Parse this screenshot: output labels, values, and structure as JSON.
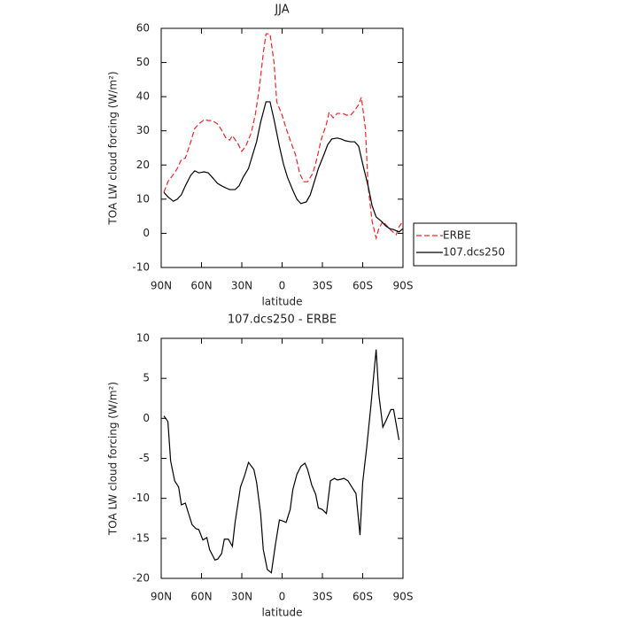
{
  "chart_data": [
    {
      "type": "line",
      "title": "JJA",
      "xlabel": "latitude",
      "ylabel": "TOA LW cloud forcing (W/m²)",
      "xlim": [
        90,
        -90
      ],
      "xticks": [
        {
          "value": 90,
          "label": "90N"
        },
        {
          "value": 60,
          "label": "60N"
        },
        {
          "value": 30,
          "label": "30N"
        },
        0,
        {
          "value": -30,
          "label": "30S"
        },
        {
          "value": -60,
          "label": "60S"
        },
        {
          "value": -90,
          "label": "90S"
        }
      ],
      "ylim": [
        -10,
        60
      ],
      "yticks": [
        -10,
        0,
        10,
        20,
        30,
        40,
        50,
        60
      ],
      "legend": "right",
      "series": [
        {
          "name": "ERBE",
          "color": "#e8262b",
          "linestyle": "dashed",
          "x": [
            88,
            85,
            81,
            78,
            75,
            72,
            68,
            65,
            62,
            58,
            55,
            52,
            48,
            45,
            42,
            39,
            37,
            33,
            30,
            27,
            23,
            20,
            17,
            14,
            12,
            9,
            6,
            4,
            0,
            -3,
            -6,
            -10,
            -13,
            -16,
            -19,
            -23,
            -26,
            -29,
            -33,
            -35,
            -38,
            -41,
            -45,
            -48,
            -51,
            -54,
            -57,
            -59,
            -62,
            -64,
            -67,
            -70,
            -72,
            -75,
            -78,
            -81,
            -85,
            -87,
            -90
          ],
          "values": [
            12,
            15.1,
            17.2,
            19,
            21.6,
            22,
            26.8,
            30.7,
            32,
            33.3,
            33,
            33,
            32,
            30.2,
            28,
            27.3,
            28.6,
            26.3,
            24,
            25.5,
            29.4,
            34.6,
            42.4,
            52.7,
            58.4,
            58.4,
            50,
            38.5,
            34.6,
            30.7,
            27.3,
            23,
            17.7,
            15.1,
            15.1,
            17.7,
            22,
            27.3,
            32,
            35.4,
            33.8,
            35.1,
            35.1,
            34.6,
            34.6,
            35.9,
            37.7,
            39.8,
            30.7,
            13.9,
            3.5,
            -1.4,
            1.4,
            3.5,
            2.2,
            0.9,
            -0.4,
            1.9,
            3.5
          ]
        },
        {
          "name": "107.dcs250",
          "color": "#000000",
          "linestyle": "solid",
          "x": [
            88,
            85,
            81,
            78,
            75,
            72,
            68,
            65,
            62,
            58,
            55,
            52,
            48,
            45,
            42,
            39,
            35,
            32,
            29,
            25,
            22,
            19,
            16,
            12,
            9,
            6,
            2,
            -1,
            -4,
            -8,
            -11,
            -14,
            -18,
            -21,
            -24,
            -27,
            -31,
            -34,
            -37,
            -41,
            -44,
            -47,
            -51,
            -54,
            -57,
            -60,
            -64,
            -67,
            -70,
            -74,
            -77,
            -80,
            -83,
            -87,
            -90
          ],
          "values": [
            12,
            10.7,
            9.4,
            10,
            11.3,
            13.9,
            17,
            18.3,
            17.7,
            18,
            17.7,
            16.4,
            14.6,
            13.9,
            13.3,
            12.8,
            12.8,
            13.9,
            16.4,
            19,
            22.9,
            26.8,
            32.5,
            38.5,
            38.5,
            33.3,
            25.5,
            20.3,
            16.4,
            12.6,
            10,
            8.7,
            9.2,
            11.3,
            15.1,
            19,
            22.9,
            26,
            27.6,
            27.9,
            27.6,
            27.1,
            26.8,
            26.8,
            25.5,
            20.3,
            13.9,
            8.1,
            4.8,
            3.5,
            2.2,
            1.4,
            1.1,
            0.4,
            1.4
          ]
        }
      ]
    },
    {
      "type": "line",
      "title": "107.dcs250 - ERBE",
      "xlabel": "latitude",
      "ylabel": "TOA LW cloud forcing (W/m²)",
      "xlim": [
        90,
        -90
      ],
      "xticks": [
        {
          "value": 90,
          "label": "90N"
        },
        {
          "value": 60,
          "label": "60N"
        },
        {
          "value": 30,
          "label": "30N"
        },
        0,
        {
          "value": -30,
          "label": "30S"
        },
        {
          "value": -60,
          "label": "60S"
        },
        {
          "value": -90,
          "label": "90S"
        }
      ],
      "ylim": [
        -20,
        10
      ],
      "yticks": [
        -20,
        -15,
        -10,
        -5,
        0,
        5,
        10
      ],
      "series": [
        {
          "color": "#000000",
          "linestyle": "solid",
          "x": [
            88,
            85,
            83,
            80,
            77,
            75,
            72,
            70,
            67,
            64,
            62,
            59,
            56,
            54,
            50,
            48,
            45,
            43,
            40,
            37,
            35,
            31,
            28,
            25,
            21,
            19,
            16,
            14,
            11,
            8,
            5,
            2,
            0,
            -3,
            -6,
            -8,
            -11,
            -14,
            -17,
            -19,
            -22,
            -25,
            -27,
            -30,
            -33,
            -36,
            -39,
            -41,
            -44,
            -46,
            -49,
            -52,
            -55,
            -58,
            -60,
            -63,
            -66,
            -70,
            -72,
            -75,
            -77,
            -81,
            -83,
            -87
          ],
          "values": [
            0.3,
            -0.4,
            -5.3,
            -7.8,
            -8.6,
            -10.8,
            -10.6,
            -11.7,
            -13.3,
            -13.8,
            -13.9,
            -15.2,
            -14.9,
            -16.4,
            -17.7,
            -17.6,
            -16.9,
            -15.1,
            -15.1,
            -16,
            -13,
            -8.6,
            -7.2,
            -5.5,
            -6.4,
            -8,
            -11.9,
            -16.4,
            -18.9,
            -19.3,
            -15.8,
            -12.7,
            -12.8,
            -13,
            -11.4,
            -8.9,
            -7,
            -6,
            -5.6,
            -6.4,
            -8.3,
            -9.5,
            -11.2,
            -11.4,
            -11.9,
            -7.8,
            -7.5,
            -7.7,
            -7.6,
            -7.5,
            -7.8,
            -8.6,
            -9.4,
            -14.6,
            -8,
            -3.6,
            1.4,
            8.6,
            3,
            -1.1,
            -0.4,
            1.1,
            1.1,
            -2.7
          ]
        }
      ]
    }
  ]
}
